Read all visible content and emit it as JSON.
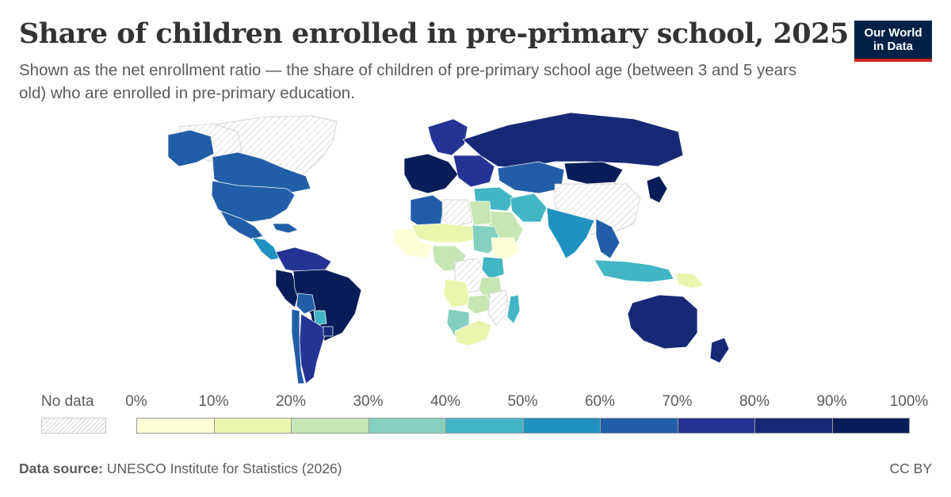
{
  "title": "Share of children enrolled in pre-primary school, 2025",
  "subtitle": "Shown as the net enrollment ratio — the share of children of pre-primary school age (between 3 and 5 years old) who are enrolled in pre-primary education.",
  "logo": {
    "line1": "Our World",
    "line2": "in Data"
  },
  "legend": {
    "no_data_label": "No data",
    "ticks": [
      "0%",
      "10%",
      "20%",
      "30%",
      "40%",
      "50%",
      "60%",
      "70%",
      "80%",
      "90%",
      "100%"
    ],
    "colors": [
      "#fefed7",
      "#eaf5ae",
      "#c6e6b3",
      "#83d0bf",
      "#42b6c4",
      "#2092c0",
      "#225ea8",
      "#253494",
      "#172976",
      "#081d58"
    ],
    "no_data_color": "#f0f0f0"
  },
  "footer": {
    "source_label": "Data source:",
    "source_text": " UNESCO Institute for Statistics (2026)",
    "license": "CC BY"
  },
  "map_data": {
    "regions": [
      {
        "name": "Greenland",
        "bin": "nodata"
      },
      {
        "name": "Arctic Canada",
        "bin": "nodata"
      },
      {
        "name": "Alaska",
        "bin": 6
      },
      {
        "name": "Canada",
        "bin": 6
      },
      {
        "name": "United States",
        "bin": 6
      },
      {
        "name": "Mexico",
        "bin": 6
      },
      {
        "name": "Central America",
        "bin": 5
      },
      {
        "name": "Caribbean",
        "bin": 6
      },
      {
        "name": "Northern South America",
        "bin": 7
      },
      {
        "name": "Peru",
        "bin": 9
      },
      {
        "name": "Brazil",
        "bin": 9
      },
      {
        "name": "Bolivia",
        "bin": 6
      },
      {
        "name": "Paraguay",
        "bin": 4
      },
      {
        "name": "Argentina",
        "bin": 7
      },
      {
        "name": "Chile",
        "bin": 6
      },
      {
        "name": "Uruguay",
        "bin": 8
      },
      {
        "name": "Western Europe",
        "bin": 9
      },
      {
        "name": "Scandinavia",
        "bin": 7
      },
      {
        "name": "Eastern Europe",
        "bin": 7
      },
      {
        "name": "Russia",
        "bin": 8
      },
      {
        "name": "Kazakhstan",
        "bin": 6
      },
      {
        "name": "Mongolia",
        "bin": 9
      },
      {
        "name": "China",
        "bin": "nodata"
      },
      {
        "name": "Japan",
        "bin": 9
      },
      {
        "name": "Middle East",
        "bin": 4
      },
      {
        "name": "Iran",
        "bin": 4
      },
      {
        "name": "Saudi Arabia",
        "bin": 2
      },
      {
        "name": "India",
        "bin": 5
      },
      {
        "name": "Southeast Asia",
        "bin": 6
      },
      {
        "name": "Indonesia",
        "bin": 4
      },
      {
        "name": "Papua New Guinea",
        "bin": 1
      },
      {
        "name": "Australia",
        "bin": 8
      },
      {
        "name": "New Zealand",
        "bin": 8
      },
      {
        "name": "Algeria",
        "bin": 6
      },
      {
        "name": "Libya",
        "bin": "nodata"
      },
      {
        "name": "Egypt",
        "bin": 2
      },
      {
        "name": "Sahel",
        "bin": 1
      },
      {
        "name": "West Africa",
        "bin": 0
      },
      {
        "name": "Sudan",
        "bin": 3
      },
      {
        "name": "Central Africa",
        "bin": 2
      },
      {
        "name": "DR Congo",
        "bin": "nodata"
      },
      {
        "name": "Ethiopia",
        "bin": 0
      },
      {
        "name": "Kenya",
        "bin": 4
      },
      {
        "name": "Tanzania",
        "bin": 2
      },
      {
        "name": "Angola",
        "bin": 1
      },
      {
        "name": "Zambia",
        "bin": 2
      },
      {
        "name": "Mozambique",
        "bin": "nodata"
      },
      {
        "name": "Namibia",
        "bin": 3
      },
      {
        "name": "South Africa",
        "bin": 1
      },
      {
        "name": "Madagascar",
        "bin": 4
      }
    ]
  }
}
